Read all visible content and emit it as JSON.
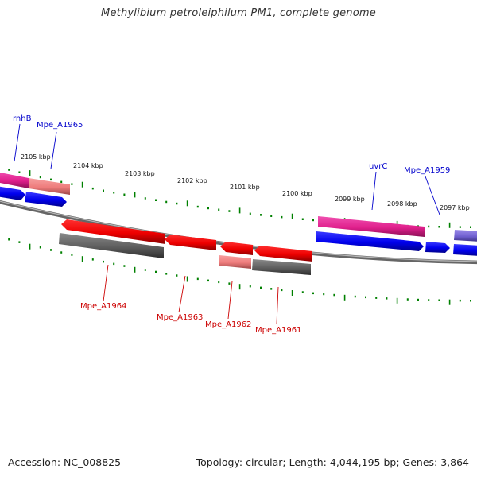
{
  "title": "Methylibium petroleiphilum PM1, complete genome",
  "footer": {
    "accession": "Accession: NC_008825",
    "summary": "Topology: circular; Length: 4,044,195 bp; Genes: 3,864"
  },
  "colors": {
    "forward_cds": "#0000ff",
    "reverse_cds": "#ff0000",
    "forward_rna": "#e8339a",
    "reverse_pseudo": "#666666",
    "light_red": "#f08080",
    "purple": "#7b68d8",
    "scale_tick": "#008000",
    "backbone": "#888888",
    "forward_label": "#0000cc",
    "reverse_label": "#cc0000"
  },
  "scale": {
    "labels": [
      "2105 kbp",
      "2104 kbp",
      "2103 kbp",
      "2102 kbp",
      "2101 kbp",
      "2100 kbp",
      "2099 kbp",
      "2098 kbp",
      "2097 kbp"
    ]
  },
  "genes": {
    "forward_labels": [
      "rnhB",
      "Mpe_A1965",
      "uvrC",
      "Mpe_A1959"
    ],
    "reverse_labels": [
      "Mpe_A1964",
      "Mpe_A1963",
      "Mpe_A1962",
      "Mpe_A1961"
    ]
  }
}
